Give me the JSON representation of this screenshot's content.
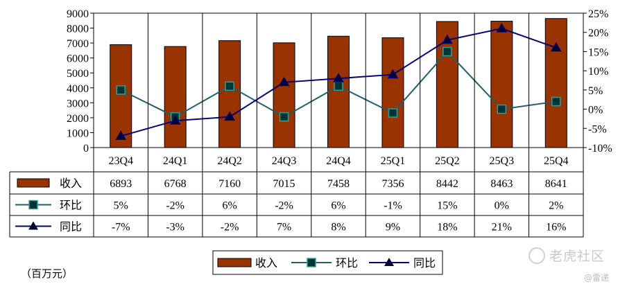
{
  "unit_label": "（百万元）",
  "watermark": {
    "brand": "老虎社区",
    "author": "@雷递"
  },
  "chart_data": {
    "type": "bar+line",
    "categories": [
      "23Q4",
      "24Q1",
      "24Q2",
      "24Q3",
      "24Q4",
      "25Q1",
      "25Q2",
      "25Q3",
      "25Q4"
    ],
    "y_left": {
      "min": 0,
      "max": 9000,
      "step": 1000,
      "ticks": [
        "0",
        "1000",
        "2000",
        "3000",
        "4000",
        "5000",
        "6000",
        "7000",
        "8000",
        "9000"
      ]
    },
    "y_right": {
      "min": -10,
      "max": 25,
      "step": 5,
      "ticks": [
        "-10%",
        "-5%",
        "0%",
        "5%",
        "10%",
        "15%",
        "20%",
        "25%"
      ]
    },
    "series": [
      {
        "name": "收入",
        "type": "bar",
        "axis": "left",
        "color": "#993300",
        "edge": "#000000",
        "values": [
          6893,
          6768,
          7160,
          7015,
          7458,
          7356,
          8442,
          8463,
          8641
        ],
        "labels": [
          "6893",
          "6768",
          "7160",
          "7015",
          "7458",
          "7356",
          "8442",
          "8463",
          "8641"
        ]
      },
      {
        "name": "环比",
        "type": "line",
        "axis": "right",
        "color": "#1f5f6b",
        "marker": "square",
        "marker_fill": "#003333",
        "values": [
          5,
          -2,
          6,
          -2,
          6,
          -1,
          15,
          0,
          2
        ],
        "labels": [
          "5%",
          "-2%",
          "6%",
          "-2%",
          "6%",
          "-1%",
          "15%",
          "0%",
          "2%"
        ]
      },
      {
        "name": "同比",
        "type": "line",
        "axis": "right",
        "color": "#000080",
        "marker": "triangle",
        "marker_fill": "#000033",
        "values": [
          -7,
          -3,
          -2,
          7,
          8,
          9,
          18,
          21,
          16
        ],
        "labels": [
          "-7%",
          "-3%",
          "-2%",
          "7%",
          "8%",
          "9%",
          "18%",
          "21%",
          "16%"
        ]
      }
    ],
    "legend": {
      "position": "bottom-center",
      "items": [
        "收入",
        "环比",
        "同比"
      ]
    },
    "grid": false
  }
}
